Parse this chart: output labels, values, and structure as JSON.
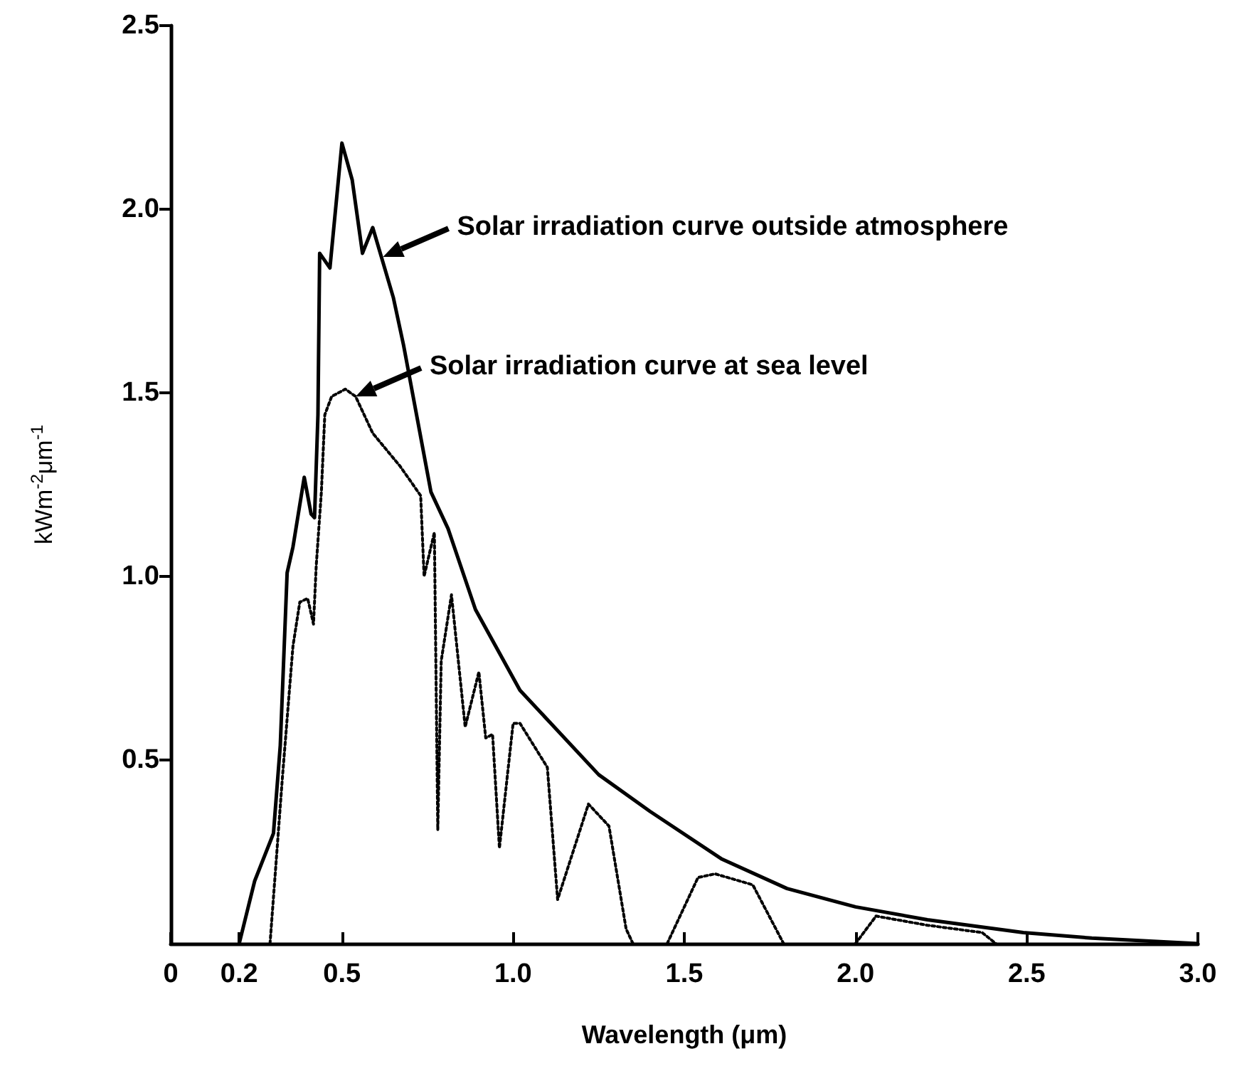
{
  "chart_data": {
    "type": "line",
    "xlabel": "Wavelength (μm)",
    "ylabel": "kWm$^{-2}$μm$^{-1}$",
    "xlim": [
      0,
      3
    ],
    "xticks": [
      0,
      0.2,
      0.5,
      {
        "value": 1,
        "label": "1.0"
      },
      1.5,
      {
        "value": 2,
        "label": "2.0"
      },
      2.5,
      {
        "value": 3,
        "label": "3.0"
      }
    ],
    "ylim": [
      0,
      2.5
    ],
    "yticks": [
      0.5,
      {
        "value": 1,
        "label": "1.0"
      },
      1.5,
      {
        "value": 2,
        "label": "2.0"
      },
      2.5
    ],
    "grid": false,
    "marker": "none",
    "series": [
      {
        "color": "#000000",
        "line_style": "solid",
        "x": [
          0.2,
          0.245,
          0.3,
          0.32,
          0.34,
          0.357,
          0.39,
          0.41,
          0.42,
          0.43,
          0.435,
          0.465,
          0.5,
          0.53,
          0.56,
          0.59,
          0.65,
          0.68,
          0.76,
          0.81,
          0.89,
          1.02,
          1.25,
          1.4,
          1.61,
          1.8,
          2.0,
          2.21,
          2.49,
          2.69,
          3.0
        ],
        "values": [
          0,
          0.17,
          0.3,
          0.54,
          1.01,
          1.08,
          1.27,
          1.17,
          1.16,
          1.44,
          1.88,
          1.84,
          2.18,
          2.08,
          1.88,
          1.95,
          1.76,
          1.63,
          1.23,
          1.13,
          0.91,
          0.69,
          0.46,
          0.36,
          0.23,
          0.15,
          0.1,
          0.065,
          0.03,
          0.015,
          0
        ]
      },
      {
        "color": "#000000",
        "line_style": "dotted",
        "x": [
          0.29,
          0.326,
          0.357,
          0.377,
          0.4,
          0.417,
          0.425,
          0.44,
          0.45,
          0.47,
          0.51,
          0.54,
          0.59,
          0.67,
          0.73,
          0.74,
          0.77,
          0.78,
          0.79,
          0.82,
          0.86,
          0.9,
          0.92,
          0.94,
          0.96,
          1.0,
          1.02,
          1.1,
          1.13,
          1.22,
          1.28,
          1.33,
          1.35,
          1.4,
          1.45,
          1.54,
          1.59,
          1.7,
          1.79,
          1.9,
          2.0,
          2.06,
          2.21,
          2.37,
          2.41
        ],
        "values": [
          0,
          0.45,
          0.81,
          0.93,
          0.94,
          0.87,
          1.03,
          1.23,
          1.44,
          1.49,
          1.51,
          1.49,
          1.39,
          1.3,
          1.22,
          1.0,
          1.12,
          0.31,
          0.77,
          0.95,
          0.59,
          0.74,
          0.56,
          0.57,
          0.26,
          0.6,
          0.6,
          0.48,
          0.12,
          0.38,
          0.32,
          0.04,
          0,
          null,
          0,
          0.18,
          0.19,
          0.16,
          0,
          null,
          0,
          0.075,
          0.05,
          0.03,
          0
        ]
      }
    ],
    "annotations": [
      {
        "text": "Solar irradiation curve outside atmosphere",
        "x": 0.62,
        "y": 1.87
      },
      {
        "text": "Solar irradiation curve at sea level",
        "x": 0.54,
        "y": 1.49
      }
    ]
  }
}
